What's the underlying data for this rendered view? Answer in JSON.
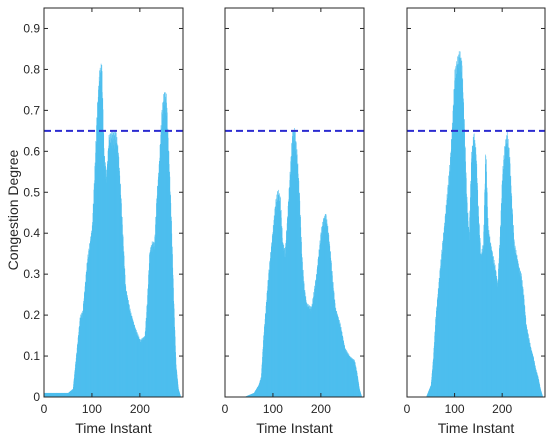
{
  "chart_data": [
    {
      "type": "bar",
      "xlabel": "Time Instant",
      "ylabel": "Congestion Degree",
      "xlim": [
        0,
        290
      ],
      "ylim": [
        0,
        0.95
      ],
      "xticks": [
        "0",
        "100",
        "200"
      ],
      "yticks": [
        "0",
        "0.1",
        "0.2",
        "0.3",
        "0.4",
        "0.5",
        "0.6",
        "0.7",
        "0.8",
        "0.9"
      ],
      "threshold": 0.65,
      "bar_color": "#4DBEEE",
      "threshold_color": "#2B2BD0",
      "x": [
        0,
        10,
        20,
        30,
        40,
        50,
        60,
        70,
        75,
        80,
        90,
        100,
        105,
        110,
        115,
        120,
        125,
        130,
        135,
        140,
        145,
        150,
        155,
        160,
        165,
        170,
        180,
        190,
        200,
        210,
        215,
        220,
        225,
        230,
        235,
        240,
        245,
        250,
        255,
        260,
        265,
        270,
        275,
        280,
        285
      ],
      "values": [
        0.01,
        0.01,
        0.01,
        0.01,
        0.01,
        0.01,
        0.02,
        0.14,
        0.2,
        0.21,
        0.34,
        0.42,
        0.55,
        0.7,
        0.8,
        0.82,
        0.6,
        0.55,
        0.64,
        0.65,
        0.65,
        0.65,
        0.6,
        0.5,
        0.38,
        0.27,
        0.21,
        0.17,
        0.14,
        0.15,
        0.24,
        0.36,
        0.38,
        0.38,
        0.5,
        0.58,
        0.7,
        0.75,
        0.74,
        0.6,
        0.45,
        0.25,
        0.08,
        0.02,
        0.0
      ]
    },
    {
      "type": "bar",
      "xlabel": "Time Instant",
      "ylabel": "",
      "xlim": [
        0,
        290
      ],
      "ylim": [
        0,
        0.95
      ],
      "xticks": [
        "0",
        "100",
        "200"
      ],
      "threshold": 0.65,
      "bar_color": "#4DBEEE",
      "threshold_color": "#2B2BD0",
      "x": [
        0,
        20,
        40,
        60,
        70,
        75,
        80,
        90,
        95,
        100,
        105,
        110,
        115,
        120,
        125,
        130,
        135,
        140,
        145,
        150,
        155,
        160,
        165,
        170,
        180,
        190,
        200,
        205,
        210,
        215,
        220,
        225,
        230,
        240,
        250,
        260,
        270,
        275,
        280,
        285
      ],
      "values": [
        0.0,
        0.0,
        0.0,
        0.01,
        0.03,
        0.05,
        0.15,
        0.3,
        0.36,
        0.42,
        0.48,
        0.51,
        0.49,
        0.38,
        0.36,
        0.45,
        0.55,
        0.65,
        0.66,
        0.6,
        0.5,
        0.35,
        0.27,
        0.23,
        0.22,
        0.3,
        0.41,
        0.44,
        0.45,
        0.41,
        0.35,
        0.28,
        0.22,
        0.18,
        0.12,
        0.1,
        0.09,
        0.06,
        0.02,
        0.0
      ]
    },
    {
      "type": "bar",
      "xlabel": "Time Instant",
      "ylabel": "",
      "xlim": [
        0,
        290
      ],
      "ylim": [
        0,
        0.95
      ],
      "xticks": [
        "0",
        "100",
        "200"
      ],
      "threshold": 0.65,
      "bar_color": "#4DBEEE",
      "threshold_color": "#2B2BD0",
      "x": [
        0,
        20,
        40,
        50,
        55,
        60,
        70,
        80,
        90,
        95,
        100,
        105,
        110,
        115,
        120,
        125,
        130,
        135,
        140,
        145,
        150,
        155,
        160,
        165,
        170,
        175,
        180,
        185,
        190,
        195,
        200,
        205,
        210,
        215,
        220,
        225,
        230,
        235,
        240,
        245,
        250,
        255,
        260,
        265,
        270,
        275,
        280,
        285
      ],
      "values": [
        0.0,
        0.0,
        0.0,
        0.03,
        0.1,
        0.2,
        0.33,
        0.45,
        0.58,
        0.68,
        0.8,
        0.83,
        0.85,
        0.82,
        0.68,
        0.5,
        0.4,
        0.6,
        0.65,
        0.6,
        0.45,
        0.35,
        0.38,
        0.62,
        0.42,
        0.38,
        0.35,
        0.32,
        0.28,
        0.4,
        0.55,
        0.62,
        0.65,
        0.6,
        0.48,
        0.38,
        0.35,
        0.32,
        0.3,
        0.25,
        0.18,
        0.15,
        0.12,
        0.1,
        0.07,
        0.05,
        0.02,
        0.0
      ]
    }
  ]
}
